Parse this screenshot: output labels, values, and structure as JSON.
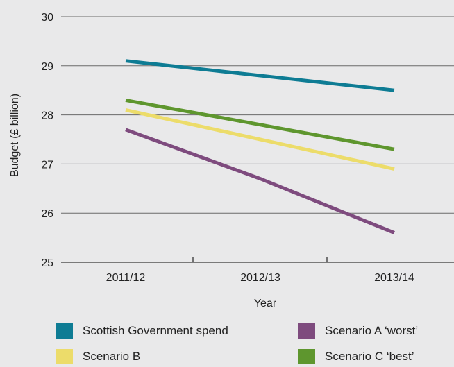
{
  "chart_data": {
    "type": "line",
    "x": [
      "2011/12",
      "2012/13",
      "2013/14"
    ],
    "xlabel": "Year",
    "ylabel": "Budget (£ billion)",
    "ylim": [
      25,
      30
    ],
    "yticks": [
      25,
      26,
      27,
      28,
      29,
      30
    ],
    "grid": "horizontal",
    "legend_position": "bottom",
    "series": [
      {
        "name": "Scottish Government spend",
        "color": "#0e7c94",
        "values": [
          29.1,
          28.8,
          28.5
        ]
      },
      {
        "name": "Scenario A ‘worst’",
        "color": "#7e4b7e",
        "values": [
          27.7,
          26.7,
          25.6
        ]
      },
      {
        "name": "Scenario B",
        "color": "#ecdc6a",
        "values": [
          28.1,
          27.5,
          26.9
        ]
      },
      {
        "name": "Scenario C ‘best’",
        "color": "#5e962e",
        "values": [
          28.3,
          27.8,
          27.3
        ]
      }
    ]
  }
}
